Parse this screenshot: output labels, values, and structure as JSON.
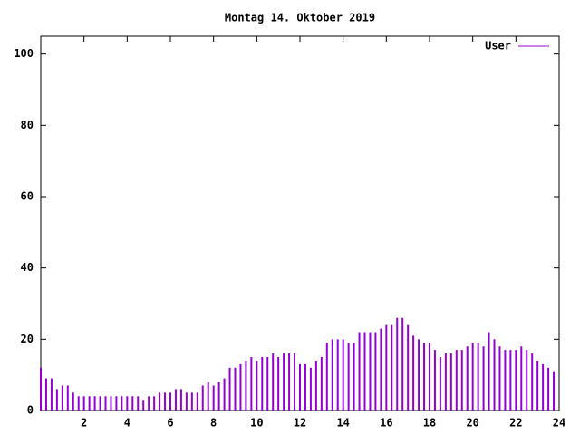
{
  "chart_data": {
    "type": "impulses",
    "title": "Montag 14. Oktober 2019",
    "xlim": [
      0,
      24
    ],
    "xticks": [
      2,
      4,
      6,
      8,
      10,
      12,
      14,
      16,
      18,
      20,
      22,
      24
    ],
    "ylim": [
      0,
      105
    ],
    "yticks": [
      0,
      20,
      40,
      60,
      80,
      100
    ],
    "legend": "top-right",
    "x": [
      0,
      0.25,
      0.5,
      0.75,
      1,
      1.25,
      1.5,
      1.75,
      2,
      2.25,
      2.5,
      2.75,
      3,
      3.25,
      3.5,
      3.75,
      4,
      4.25,
      4.5,
      4.75,
      5,
      5.25,
      5.5,
      5.75,
      6,
      6.25,
      6.5,
      6.75,
      7,
      7.25,
      7.5,
      7.75,
      8,
      8.25,
      8.5,
      8.75,
      9,
      9.25,
      9.5,
      9.75,
      10,
      10.25,
      10.5,
      10.75,
      11,
      11.25,
      11.5,
      11.75,
      12,
      12.25,
      12.5,
      12.75,
      13,
      13.25,
      13.5,
      13.75,
      14,
      14.25,
      14.5,
      14.75,
      15,
      15.25,
      15.5,
      15.75,
      16,
      16.25,
      16.5,
      16.75,
      17,
      17.25,
      17.5,
      17.75,
      18,
      18.25,
      18.5,
      18.75,
      19,
      19.25,
      19.5,
      19.75,
      20,
      20.25,
      20.5,
      20.75,
      21,
      21.25,
      21.5,
      21.75,
      22,
      22.25,
      22.5,
      22.75,
      23,
      23.25,
      23.5,
      23.75
    ],
    "series": [
      {
        "name": "User",
        "color": "#9400d3",
        "values": [
          12,
          9,
          9,
          6,
          7,
          7,
          5,
          4,
          4,
          4,
          4,
          4,
          4,
          4,
          4,
          4,
          4,
          4,
          4,
          3,
          4,
          4,
          5,
          5,
          5,
          6,
          6,
          5,
          5,
          5,
          7,
          8,
          7,
          8,
          9,
          12,
          12,
          13,
          14,
          15,
          14,
          15,
          15,
          16,
          15,
          16,
          16,
          16,
          13,
          13,
          12,
          14,
          15,
          19,
          20,
          20,
          20,
          19,
          19,
          22,
          22,
          22,
          22,
          23,
          24,
          24,
          26,
          26,
          24,
          21,
          20,
          19,
          19,
          17,
          15,
          16,
          16,
          17,
          17,
          18,
          19,
          19,
          18,
          22,
          20,
          18,
          17,
          17,
          17,
          18,
          17,
          16,
          14,
          13,
          12,
          11
        ]
      }
    ]
  }
}
